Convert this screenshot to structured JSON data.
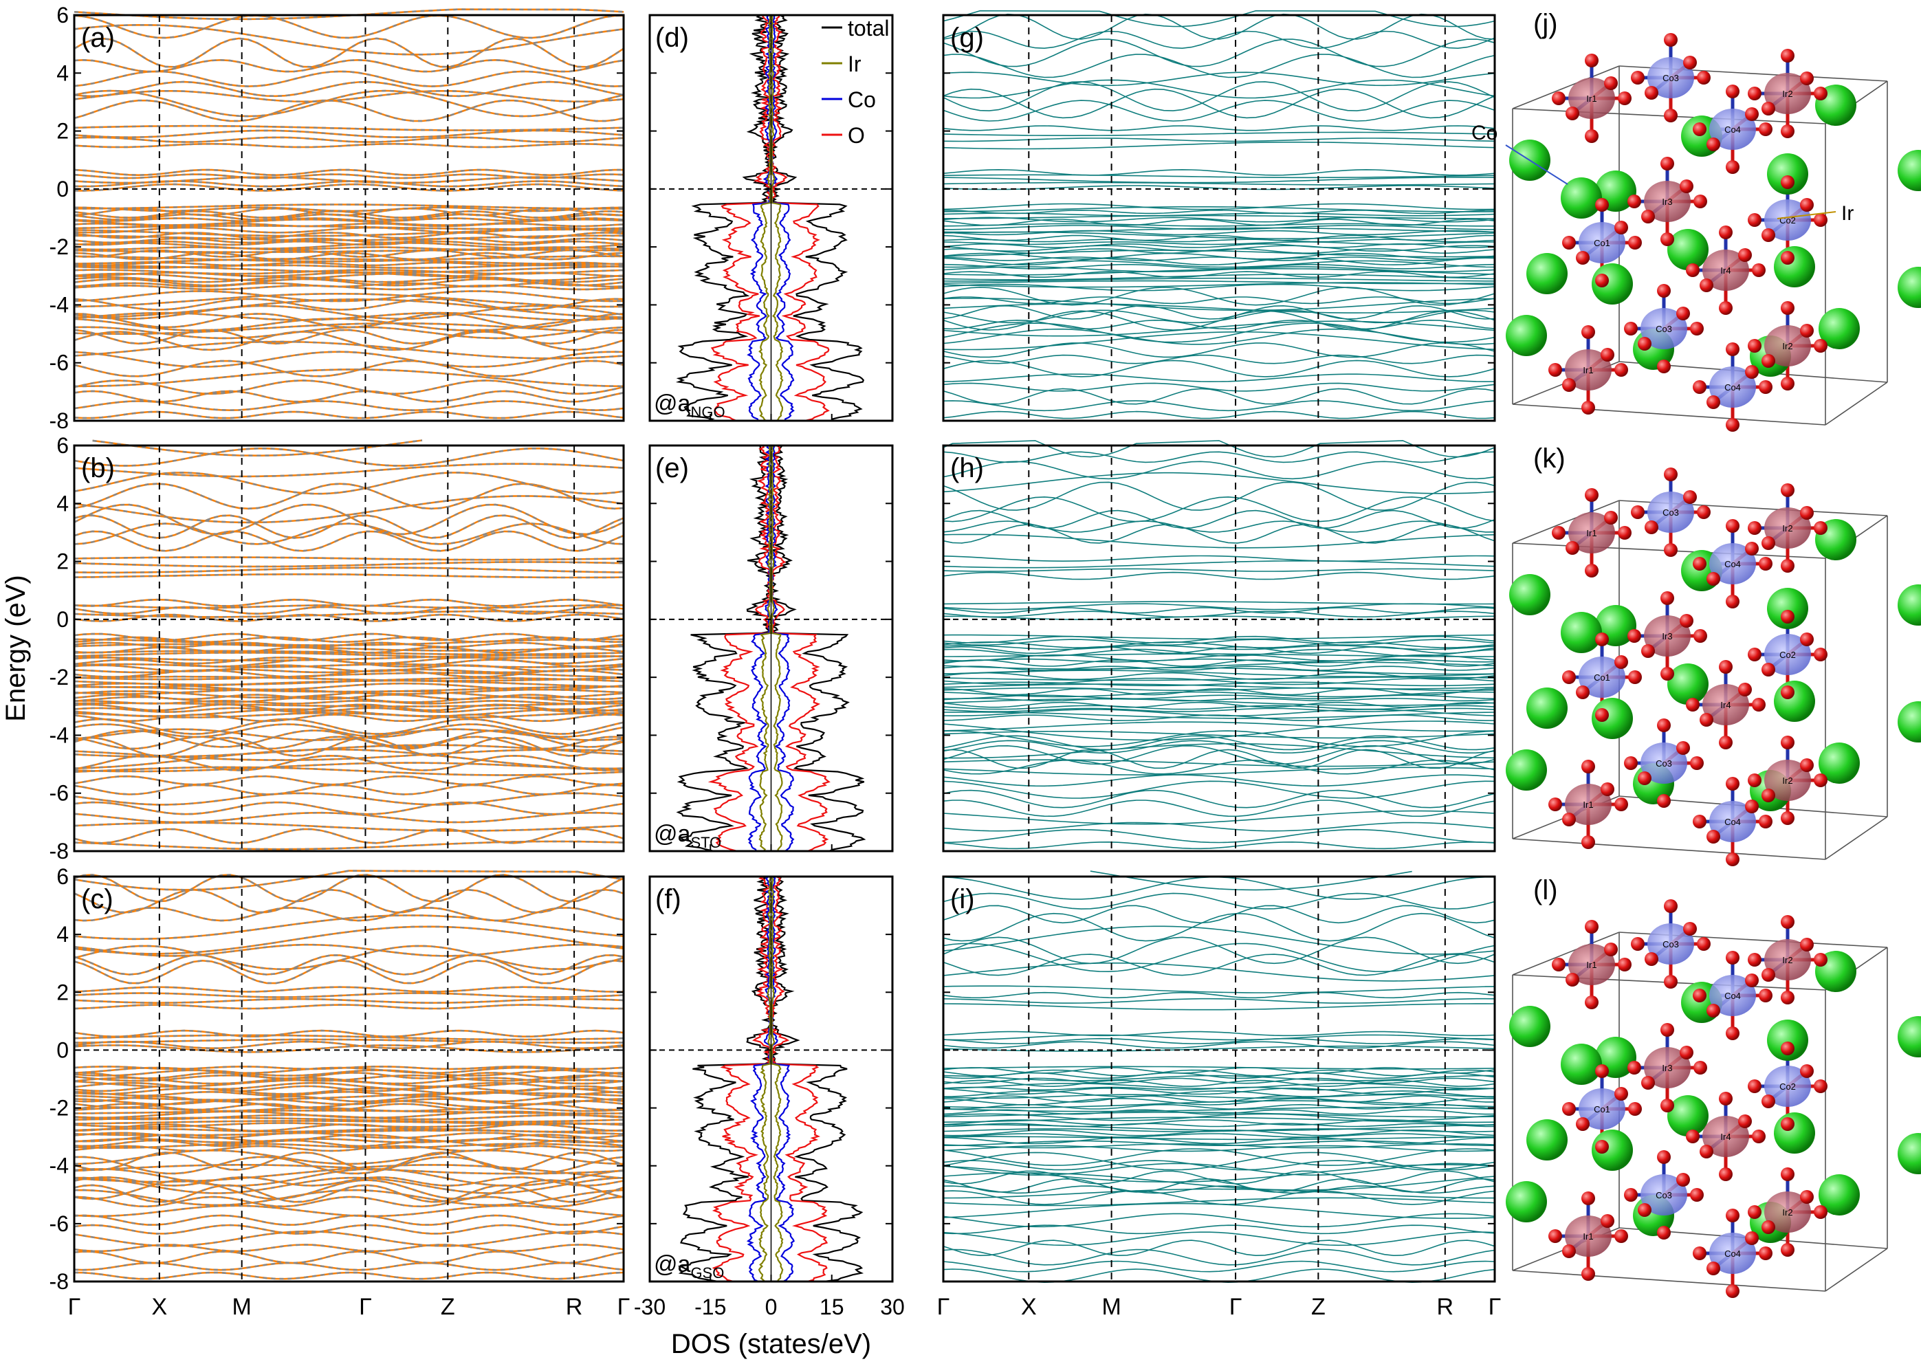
{
  "chart_data": {
    "type": "line",
    "figure_kind": "electronic band structure, density of states and crystal structures",
    "y_axis": {
      "label": "Energy (eV)",
      "ylim": [
        -8,
        6
      ],
      "ticks": [
        -8,
        -6,
        -4,
        -2,
        0,
        2,
        4,
        6
      ],
      "fermi_level": 0
    },
    "band_kpath": {
      "labels": [
        "Γ",
        "X",
        "M",
        "Γ",
        "Z",
        "R",
        "Γ"
      ],
      "positions": [
        0,
        0.155,
        0.305,
        0.53,
        0.68,
        0.91,
        1.0
      ]
    },
    "dos_axis": {
      "label": "DOS (states/eV)",
      "xlim": [
        -30,
        30
      ],
      "tick_values": [
        -30,
        -15,
        0,
        15,
        30
      ],
      "tick_labels": [
        "-30",
        "-15",
        "0",
        "15",
        "30"
      ]
    },
    "dos_legend": [
      {
        "name": "total",
        "color": "#000000"
      },
      {
        "name": "Ir",
        "color": "#808000"
      },
      {
        "name": "Co",
        "color": "#0000dd"
      },
      {
        "name": "O",
        "color": "#ee1111"
      }
    ],
    "band_panels": [
      {
        "label": "(a)",
        "style": "orange+gray dashed",
        "colors": [
          "#f5820f",
          "#888888"
        ]
      },
      {
        "label": "(b)",
        "style": "orange+gray dashed",
        "colors": [
          "#f5820f",
          "#888888"
        ]
      },
      {
        "label": "(c)",
        "style": "orange+gray dashed",
        "colors": [
          "#f5820f",
          "#888888"
        ]
      },
      {
        "label": "(g)",
        "style": "teal",
        "colors": [
          "#0f7d7d"
        ]
      },
      {
        "label": "(h)",
        "style": "teal",
        "colors": [
          "#0f7d7d"
        ]
      },
      {
        "label": "(i)",
        "style": "teal",
        "colors": [
          "#0f7d7d"
        ]
      }
    ],
    "dos_panels": [
      {
        "label": "(d)",
        "substrate_prefix": "@a",
        "substrate_sub": "NGO"
      },
      {
        "label": "(e)",
        "substrate_prefix": "@a",
        "substrate_sub": "STO"
      },
      {
        "label": "(f)",
        "substrate_prefix": "@a",
        "substrate_sub": "GSO"
      }
    ],
    "structure_panels": [
      {
        "label": "(j)",
        "co_label": "Co",
        "ir_label": "Ir"
      },
      {
        "label": "(k)"
      },
      {
        "label": "(l)"
      }
    ],
    "atom_labels": [
      "Co1",
      "Co2",
      "Co3",
      "Co4",
      "Ir1",
      "Ir2",
      "Ir3",
      "Ir4"
    ],
    "atom_colors": {
      "A-site": "#22cc22",
      "O": "#dd1111",
      "Co": "#6670dd",
      "Ir": "#b85c6a"
    }
  }
}
